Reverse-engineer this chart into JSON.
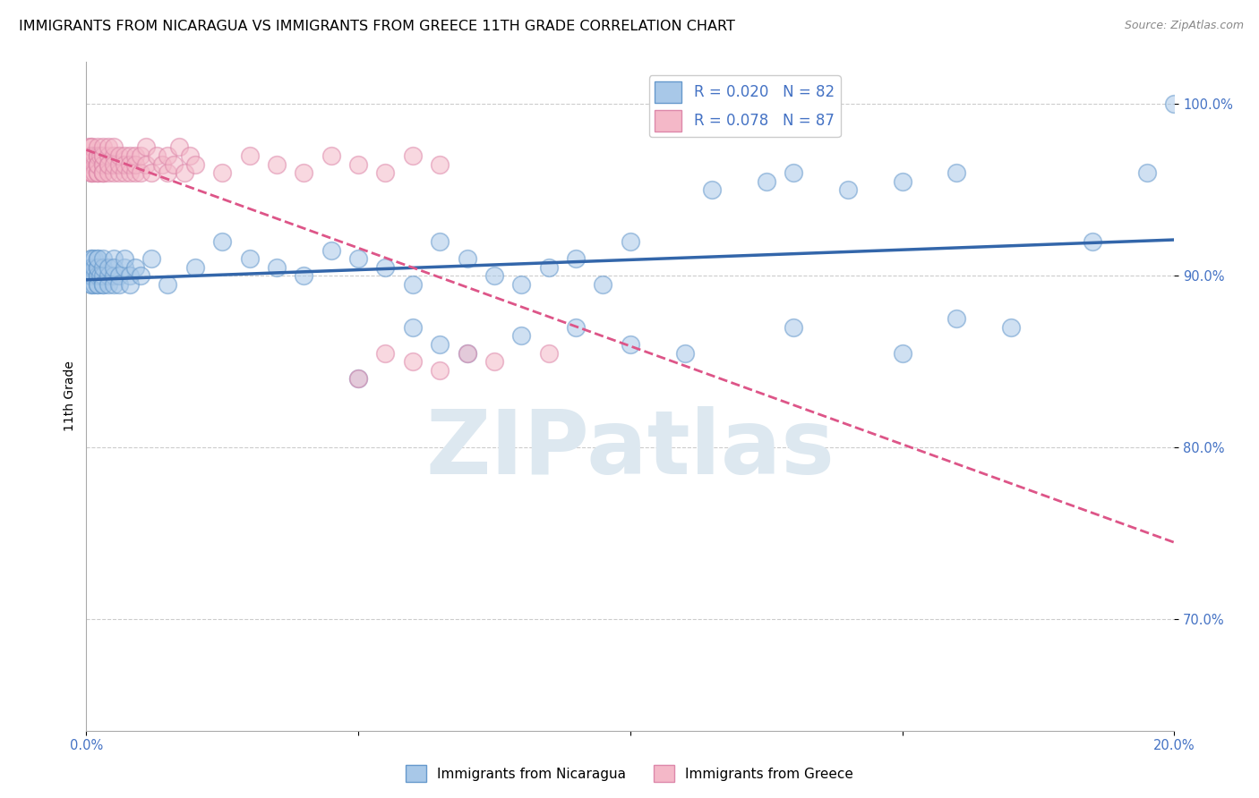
{
  "title": "IMMIGRANTS FROM NICARAGUA VS IMMIGRANTS FROM GREECE 11TH GRADE CORRELATION CHART",
  "source": "Source: ZipAtlas.com",
  "ylabel": "11th Grade",
  "ytick_labels": [
    "70.0%",
    "80.0%",
    "90.0%",
    "100.0%"
  ],
  "ytick_values": [
    0.7,
    0.8,
    0.9,
    1.0
  ],
  "legend_r1": "R = 0.020",
  "legend_n1": "N = 82",
  "legend_r2": "R = 0.078",
  "legend_n2": "N = 87",
  "color_nicaragua": "#a8c8e8",
  "color_nicaragua_edge": "#6699cc",
  "color_greece": "#f4b8c8",
  "color_greece_edge": "#dd88aa",
  "color_nicaragua_line": "#3366aa",
  "color_greece_line": "#dd5588",
  "color_grid": "#cccccc",
  "background_color": "#ffffff",
  "title_fontsize": 11.5,
  "source_fontsize": 9,
  "axis_label_fontsize": 10,
  "tick_fontsize": 10.5,
  "legend_fontsize": 12,
  "watermark_text": "ZIPatlas",
  "watermark_color": "#dde8f0",
  "xlim": [
    0.0,
    0.2
  ],
  "ylim": [
    0.635,
    1.025
  ],
  "nicaragua_x": [
    0.0005,
    0.001,
    0.001,
    0.001,
    0.001,
    0.001,
    0.001,
    0.001,
    0.001,
    0.0015,
    0.0015,
    0.0015,
    0.0015,
    0.002,
    0.002,
    0.002,
    0.002,
    0.002,
    0.002,
    0.002,
    0.002,
    0.0025,
    0.003,
    0.003,
    0.003,
    0.003,
    0.003,
    0.004,
    0.004,
    0.004,
    0.005,
    0.005,
    0.005,
    0.005,
    0.006,
    0.006,
    0.007,
    0.007,
    0.008,
    0.008,
    0.009,
    0.01,
    0.012,
    0.015,
    0.02,
    0.025,
    0.03,
    0.035,
    0.04,
    0.045,
    0.05,
    0.055,
    0.06,
    0.065,
    0.07,
    0.075,
    0.08,
    0.085,
    0.09,
    0.095,
    0.1,
    0.115,
    0.125,
    0.13,
    0.14,
    0.15,
    0.16,
    0.05,
    0.06,
    0.065,
    0.07,
    0.08,
    0.09,
    0.1,
    0.11,
    0.13,
    0.15,
    0.16,
    0.17,
    0.185,
    0.195,
    0.2
  ],
  "nicaragua_y": [
    0.9,
    0.895,
    0.91,
    0.905,
    0.9,
    0.895,
    0.91,
    0.9,
    0.905,
    0.9,
    0.895,
    0.905,
    0.91,
    0.895,
    0.9,
    0.905,
    0.91,
    0.9,
    0.895,
    0.905,
    0.91,
    0.9,
    0.895,
    0.9,
    0.905,
    0.91,
    0.895,
    0.9,
    0.905,
    0.895,
    0.9,
    0.91,
    0.895,
    0.905,
    0.9,
    0.895,
    0.905,
    0.91,
    0.9,
    0.895,
    0.905,
    0.9,
    0.91,
    0.895,
    0.905,
    0.92,
    0.91,
    0.905,
    0.9,
    0.915,
    0.91,
    0.905,
    0.895,
    0.92,
    0.91,
    0.9,
    0.895,
    0.905,
    0.91,
    0.895,
    0.92,
    0.95,
    0.955,
    0.96,
    0.95,
    0.955,
    0.96,
    0.84,
    0.87,
    0.86,
    0.855,
    0.865,
    0.87,
    0.86,
    0.855,
    0.87,
    0.855,
    0.875,
    0.87,
    0.92,
    0.96,
    1.0
  ],
  "greece_x": [
    0.0005,
    0.0005,
    0.001,
    0.001,
    0.001,
    0.001,
    0.001,
    0.001,
    0.001,
    0.001,
    0.001,
    0.001,
    0.001,
    0.0015,
    0.0015,
    0.0015,
    0.002,
    0.002,
    0.002,
    0.002,
    0.002,
    0.002,
    0.002,
    0.002,
    0.002,
    0.002,
    0.002,
    0.0025,
    0.003,
    0.003,
    0.003,
    0.003,
    0.003,
    0.003,
    0.003,
    0.003,
    0.004,
    0.004,
    0.004,
    0.004,
    0.004,
    0.005,
    0.005,
    0.005,
    0.005,
    0.006,
    0.006,
    0.006,
    0.007,
    0.007,
    0.007,
    0.008,
    0.008,
    0.008,
    0.009,
    0.009,
    0.009,
    0.01,
    0.01,
    0.011,
    0.011,
    0.012,
    0.013,
    0.014,
    0.015,
    0.015,
    0.016,
    0.017,
    0.018,
    0.019,
    0.02,
    0.025,
    0.03,
    0.035,
    0.04,
    0.045,
    0.05,
    0.055,
    0.06,
    0.065,
    0.05,
    0.055,
    0.06,
    0.065,
    0.07,
    0.075,
    0.085
  ],
  "greece_y": [
    0.97,
    0.975,
    0.965,
    0.97,
    0.975,
    0.96,
    0.965,
    0.97,
    0.96,
    0.965,
    0.97,
    0.975,
    0.96,
    0.965,
    0.97,
    0.96,
    0.965,
    0.97,
    0.96,
    0.965,
    0.97,
    0.96,
    0.965,
    0.97,
    0.975,
    0.96,
    0.965,
    0.97,
    0.96,
    0.965,
    0.97,
    0.96,
    0.965,
    0.97,
    0.975,
    0.96,
    0.965,
    0.97,
    0.96,
    0.975,
    0.965,
    0.96,
    0.97,
    0.965,
    0.975,
    0.96,
    0.965,
    0.97,
    0.96,
    0.97,
    0.965,
    0.96,
    0.97,
    0.965,
    0.96,
    0.97,
    0.965,
    0.96,
    0.97,
    0.965,
    0.975,
    0.96,
    0.97,
    0.965,
    0.96,
    0.97,
    0.965,
    0.975,
    0.96,
    0.97,
    0.965,
    0.96,
    0.97,
    0.965,
    0.96,
    0.97,
    0.965,
    0.96,
    0.97,
    0.965,
    0.84,
    0.855,
    0.85,
    0.845,
    0.855,
    0.85,
    0.855
  ]
}
